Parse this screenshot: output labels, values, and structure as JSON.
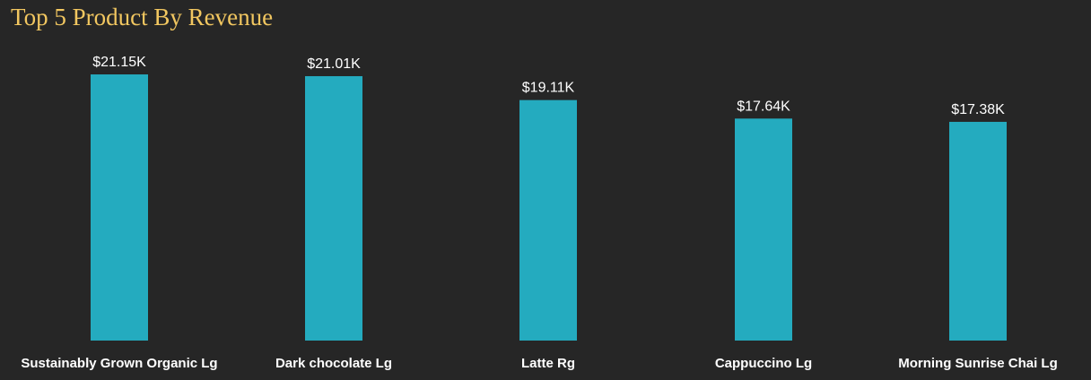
{
  "chart_data": {
    "type": "bar",
    "title": "Top 5 Product By Revenue",
    "xlabel": "",
    "ylabel": "",
    "categories": [
      "Sustainably Grown Organic Lg",
      "Dark chocolate Lg",
      "Latte Rg",
      "Cappuccino Lg",
      "Morning Sunrise Chai Lg"
    ],
    "values": [
      21.15,
      21.01,
      19.11,
      17.64,
      17.38
    ],
    "value_unit": "thousands of USD",
    "data_labels": [
      "$21.15K",
      "$21.01K",
      "$19.11K",
      "$17.64K",
      "$17.38K"
    ],
    "ylim": [
      0,
      24
    ],
    "grid": false,
    "legend": "none",
    "colors": {
      "background": "#262626",
      "bar": "#24ABBF",
      "title": "#F2C760",
      "labels": "#FFFFFF"
    }
  }
}
